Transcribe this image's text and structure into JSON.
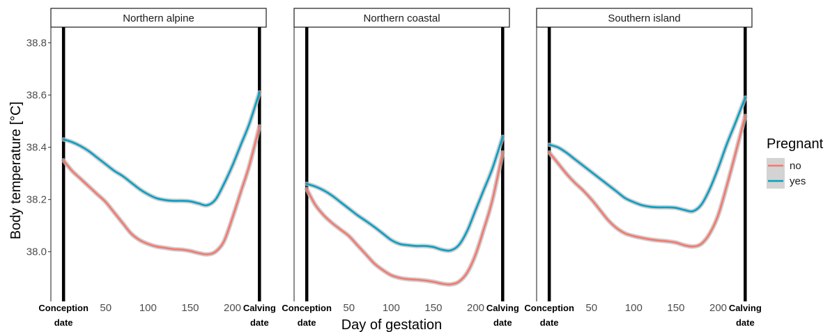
{
  "chart_data": {
    "type": "line",
    "xlabel": "Day of gestation",
    "ylabel": "Body temperature [°C]",
    "xlim": [
      -15,
      240
    ],
    "ylim": [
      37.81,
      38.86
    ],
    "x_ticks": [
      50,
      100,
      150,
      200
    ],
    "y_ticks": [
      38.0,
      38.2,
      38.4,
      38.6,
      38.8
    ],
    "y_tick_labels": [
      "38.0",
      "38.2",
      "38.4",
      "38.6",
      "38.8"
    ],
    "event_markers": [
      {
        "label_line1": "Conception",
        "label_line2": "date",
        "x": 0
      },
      {
        "label_line1": "Calving",
        "label_line2": "date",
        "x": 232
      }
    ],
    "legend": {
      "title": "Pregnant",
      "position": "right"
    },
    "colors": {
      "no": "#F8766D",
      "yes": "#00A0C6",
      "ribbon": "#bdbdbd"
    },
    "grid": false,
    "panels": [
      {
        "title": "Northern alpine",
        "series": [
          {
            "name": "no",
            "x": [
              0,
              10,
              20,
              30,
              40,
              50,
              60,
              70,
              80,
              90,
              100,
              110,
              120,
              130,
              140,
              150,
              160,
              170,
              180,
              190,
              200,
              210,
              220,
              232
            ],
            "y": [
              38.35,
              38.31,
              38.28,
              38.25,
              38.22,
              38.19,
              38.15,
              38.11,
              38.07,
              38.045,
              38.03,
              38.02,
              38.015,
              38.01,
              38.008,
              38.003,
              37.995,
              37.99,
              38.0,
              38.04,
              38.13,
              38.23,
              38.33,
              38.48
            ]
          },
          {
            "name": "yes",
            "x": [
              0,
              10,
              20,
              30,
              40,
              50,
              60,
              70,
              80,
              90,
              100,
              110,
              120,
              130,
              140,
              150,
              160,
              170,
              180,
              190,
              200,
              210,
              220,
              232
            ],
            "y": [
              38.43,
              38.42,
              38.405,
              38.385,
              38.36,
              38.335,
              38.31,
              38.29,
              38.265,
              38.24,
              38.22,
              38.205,
              38.198,
              38.195,
              38.195,
              38.193,
              38.185,
              38.178,
              38.2,
              38.26,
              38.33,
              38.41,
              38.49,
              38.61
            ]
          }
        ]
      },
      {
        "title": "Northern coastal",
        "series": [
          {
            "name": "no",
            "x": [
              0,
              10,
              20,
              30,
              40,
              50,
              60,
              70,
              80,
              90,
              100,
              110,
              120,
              130,
              140,
              150,
              160,
              170,
              180,
              190,
              200,
              210,
              220,
              232
            ],
            "y": [
              38.24,
              38.18,
              38.14,
              38.11,
              38.085,
              38.06,
              38.025,
              37.99,
              37.955,
              37.93,
              37.91,
              37.9,
              37.895,
              37.893,
              37.89,
              37.885,
              37.878,
              37.875,
              37.885,
              37.92,
              37.99,
              38.09,
              38.2,
              38.38
            ]
          },
          {
            "name": "yes",
            "x": [
              0,
              10,
              20,
              30,
              40,
              50,
              60,
              70,
              80,
              90,
              100,
              110,
              120,
              130,
              140,
              150,
              160,
              170,
              180,
              190,
              200,
              210,
              220,
              232
            ],
            "y": [
              38.26,
              38.25,
              38.235,
              38.215,
              38.19,
              38.165,
              38.14,
              38.118,
              38.095,
              38.07,
              38.045,
              38.03,
              38.025,
              38.022,
              38.022,
              38.018,
              38.008,
              38.005,
              38.025,
              38.08,
              38.16,
              38.24,
              38.32,
              38.44
            ]
          }
        ]
      },
      {
        "title": "Southern island",
        "series": [
          {
            "name": "no",
            "x": [
              0,
              10,
              20,
              30,
              40,
              50,
              60,
              70,
              80,
              90,
              100,
              110,
              120,
              130,
              140,
              150,
              160,
              170,
              180,
              190,
              200,
              210,
              220,
              232
            ],
            "y": [
              38.38,
              38.34,
              38.3,
              38.265,
              38.235,
              38.2,
              38.16,
              38.12,
              38.09,
              38.07,
              38.06,
              38.053,
              38.047,
              38.043,
              38.04,
              38.035,
              38.025,
              38.02,
              38.03,
              38.07,
              38.14,
              38.25,
              38.37,
              38.52
            ]
          },
          {
            "name": "yes",
            "x": [
              0,
              10,
              20,
              30,
              40,
              50,
              60,
              70,
              80,
              90,
              100,
              110,
              120,
              130,
              140,
              150,
              160,
              170,
              180,
              190,
              200,
              210,
              220,
              232
            ],
            "y": [
              38.41,
              38.4,
              38.38,
              38.355,
              38.33,
              38.305,
              38.28,
              38.255,
              38.23,
              38.205,
              38.19,
              38.178,
              38.172,
              38.17,
              38.17,
              38.168,
              38.16,
              38.155,
              38.18,
              38.24,
              38.32,
              38.41,
              38.49,
              38.59
            ]
          }
        ]
      }
    ]
  }
}
